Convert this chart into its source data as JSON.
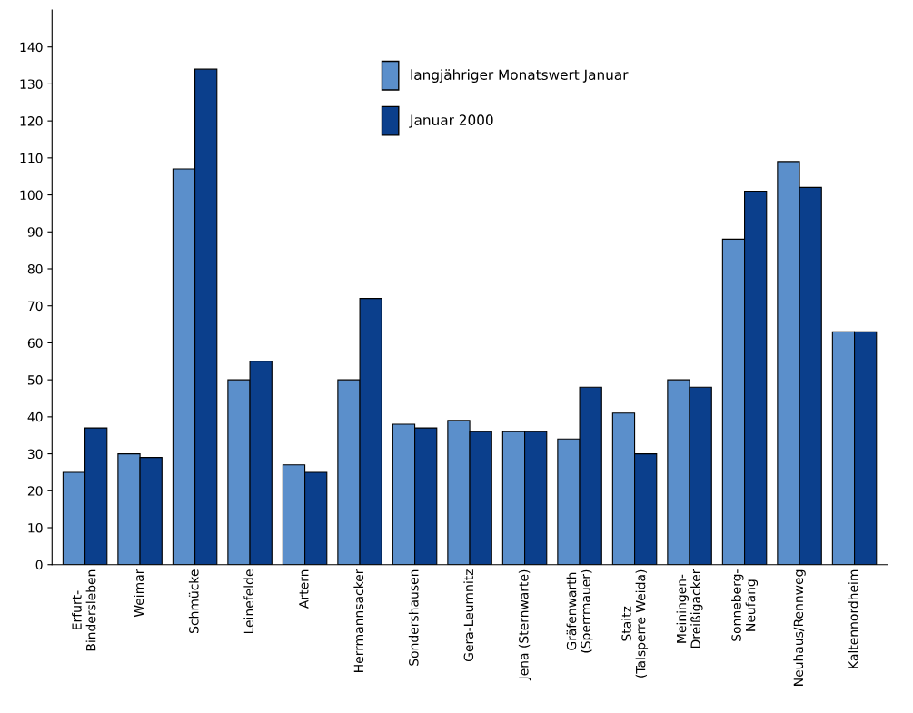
{
  "chart_data": {
    "type": "bar",
    "categories": [
      "Erfurt-\nBindersleben",
      "Weimar",
      "Schmücke",
      "Leinefelde",
      "Artern",
      "Herrmannsacker",
      "Sondershausen",
      "Gera-Leumnitz",
      "Jena (Sternwarte)",
      "Gräfenwarth\n(Sperrmauer)",
      "Staitz\n(Talsperre Weida)",
      "Meiningen-\nDreißigacker",
      "Sonneberg-\nNeufang",
      "Neuhaus/Rennweg",
      "Kaltennordheim"
    ],
    "series": [
      {
        "name": "langjähriger Monatswert Januar",
        "color": "#5b8fcb",
        "values": [
          25,
          30,
          107,
          50,
          27,
          50,
          38,
          39,
          36,
          34,
          41,
          50,
          88,
          109,
          63
        ]
      },
      {
        "name": "Januar 2000",
        "color": "#0b3f8c",
        "values": [
          37,
          29,
          134,
          55,
          25,
          72,
          37,
          36,
          36,
          48,
          30,
          48,
          101,
          102,
          63
        ]
      }
    ],
    "ylim": [
      0,
      150
    ],
    "yticks": [
      0,
      10,
      20,
      30,
      40,
      50,
      60,
      70,
      80,
      90,
      100,
      110,
      120,
      130,
      140
    ],
    "grid": false,
    "legend": "top"
  }
}
